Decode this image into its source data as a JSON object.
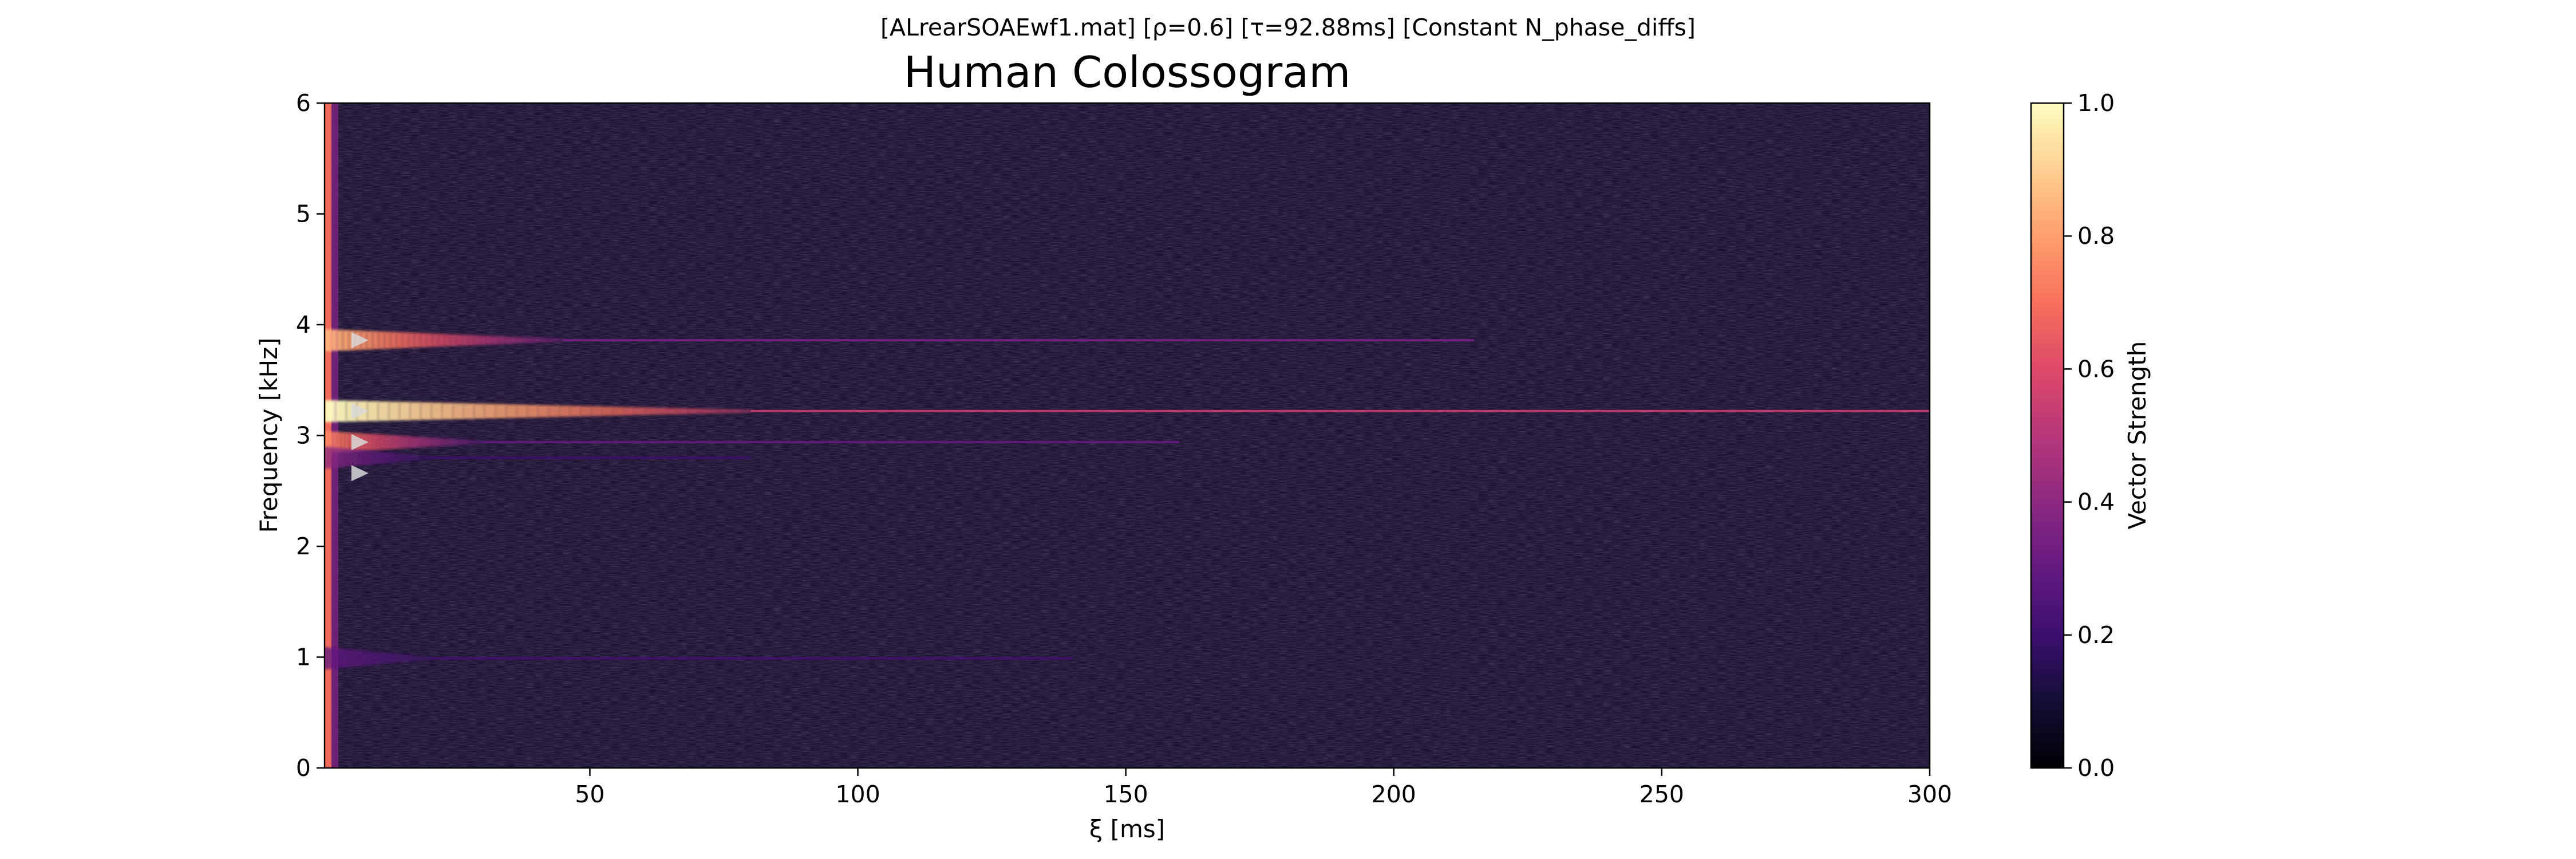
{
  "figure": {
    "suptitle": "[ALrearSOAEwf1.mat]   [ρ=0.6]   [τ=92.88ms]   [Constant N_phase_diffs]",
    "title": "Human Colossogram",
    "xlabel": "ξ [ms]",
    "ylabel": "Frequency [kHz]",
    "colorbar_label": "Vector Strength"
  },
  "chart_data": {
    "type": "heatmap",
    "title": "Human Colossogram",
    "xlabel": "ξ [ms]",
    "ylabel": "Frequency [kHz]",
    "xlim": [
      0.5,
      300
    ],
    "ylim": [
      0,
      6
    ],
    "x_ticks": [
      50,
      100,
      150,
      200,
      250,
      300
    ],
    "y_ticks": [
      0,
      1,
      2,
      3,
      4,
      5,
      6
    ],
    "colormap": "magma",
    "colorbar": {
      "label": "Vector Strength",
      "range": [
        0.0,
        1.0
      ],
      "ticks": [
        "0.0",
        "0.2",
        "0.4",
        "0.6",
        "0.8",
        "1.0"
      ]
    },
    "background_value": 0.1,
    "peaks": [
      {
        "freq_khz": 3.86,
        "peak_value": 0.85,
        "decays_by_ms": 45,
        "tail_value": 0.35,
        "tail_until_ms": 215
      },
      {
        "freq_khz": 3.22,
        "peak_value": 1.0,
        "decays_by_ms": 80,
        "tail_value": 0.55,
        "tail_until_ms": 300
      },
      {
        "freq_khz": 2.94,
        "peak_value": 0.75,
        "decays_by_ms": 30,
        "tail_value": 0.3,
        "tail_until_ms": 160
      },
      {
        "freq_khz": 2.8,
        "peak_value": 0.4,
        "decays_by_ms": 20,
        "tail_value": 0.2,
        "tail_until_ms": 80
      },
      {
        "freq_khz": 0.99,
        "peak_value": 0.3,
        "decays_by_ms": 20,
        "tail_value": 0.22,
        "tail_until_ms": 140
      }
    ],
    "markers": {
      "shape": "triangle-right",
      "color": "#d8d8d8",
      "x_ms": 7,
      "freqs_khz": [
        3.86,
        3.22,
        2.94,
        2.66
      ]
    }
  },
  "colors": {
    "background": "#ffffff",
    "axes_background": "#1b1130",
    "marker": "#d8d8d8"
  }
}
